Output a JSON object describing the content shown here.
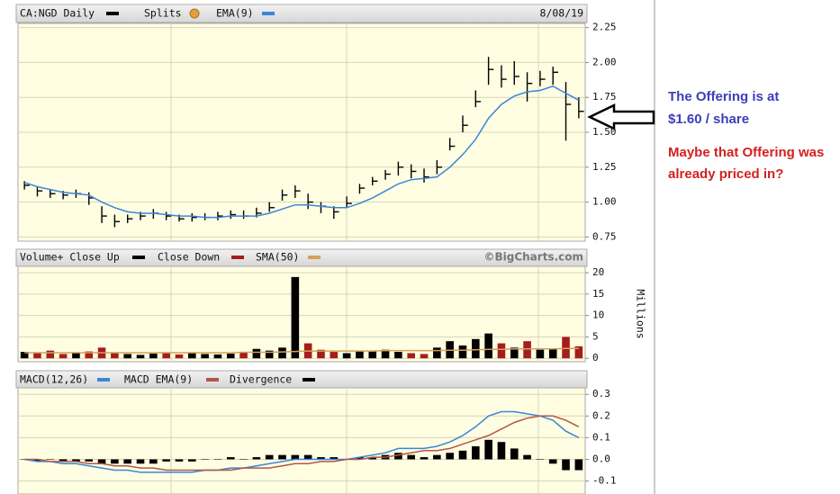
{
  "chart_data": [
    {
      "type": "ohlc",
      "title": "CA:NGD Daily",
      "splits_label": "Splits",
      "date": "8/08/19",
      "ylim": [
        0.72,
        2.28
      ],
      "yticks": [
        {
          "value": 0.75,
          "label": "0.75"
        },
        {
          "value": 1,
          "label": "1.00"
        },
        {
          "value": 1.25,
          "label": "1.25"
        },
        {
          "value": 1.5,
          "label": "1.50"
        },
        {
          "value": 1.75,
          "label": "1.75"
        },
        {
          "value": 2,
          "label": "2.00"
        },
        {
          "value": 2.25,
          "label": "2.25"
        }
      ],
      "grid": true,
      "series": [
        {
          "name": "CA:NGD Daily",
          "color": "#000000",
          "high": [
            1.15,
            1.11,
            1.09,
            1.08,
            1.09,
            1.07,
            0.97,
            0.91,
            0.91,
            0.93,
            0.95,
            0.93,
            0.91,
            0.92,
            0.92,
            0.93,
            0.94,
            0.94,
            0.96,
            1.0,
            1.09,
            1.12,
            1.06,
            1.0,
            0.97,
            1.04,
            1.13,
            1.18,
            1.23,
            1.29,
            1.27,
            1.24,
            1.3,
            1.46,
            1.62,
            1.8,
            2.04,
            1.98,
            2.01,
            1.93,
            1.94,
            1.97,
            1.86,
            1.75
          ],
          "low": [
            1.09,
            1.04,
            1.03,
            1.02,
            1.03,
            0.98,
            0.85,
            0.82,
            0.85,
            0.87,
            0.88,
            0.87,
            0.86,
            0.86,
            0.87,
            0.87,
            0.88,
            0.88,
            0.89,
            0.93,
            1.01,
            1.03,
            0.95,
            0.92,
            0.88,
            0.96,
            1.06,
            1.12,
            1.16,
            1.19,
            1.17,
            1.14,
            1.2,
            1.37,
            1.5,
            1.68,
            1.84,
            1.82,
            1.84,
            1.72,
            1.83,
            1.84,
            1.44,
            1.6
          ],
          "close": [
            1.12,
            1.08,
            1.06,
            1.05,
            1.06,
            1.03,
            0.9,
            0.86,
            0.88,
            0.9,
            0.92,
            0.9,
            0.88,
            0.89,
            0.89,
            0.9,
            0.91,
            0.9,
            0.92,
            0.96,
            1.05,
            1.08,
            1.0,
            0.97,
            0.93,
            0.99,
            1.1,
            1.15,
            1.2,
            1.25,
            1.22,
            1.18,
            1.25,
            1.4,
            1.55,
            1.72,
            1.95,
            1.88,
            1.9,
            1.85,
            1.88,
            1.93,
            1.7,
            1.65
          ]
        },
        {
          "name": "EMA(9)",
          "color": "#3a86d8",
          "style": "line",
          "values": [
            1.14,
            1.11,
            1.09,
            1.07,
            1.06,
            1.05,
            1.0,
            0.96,
            0.93,
            0.92,
            0.92,
            0.91,
            0.9,
            0.9,
            0.89,
            0.89,
            0.9,
            0.9,
            0.9,
            0.92,
            0.95,
            0.98,
            0.98,
            0.97,
            0.96,
            0.96,
            0.99,
            1.03,
            1.08,
            1.13,
            1.16,
            1.17,
            1.18,
            1.25,
            1.34,
            1.45,
            1.6,
            1.7,
            1.76,
            1.79,
            1.8,
            1.83,
            1.78,
            1.73
          ]
        }
      ]
    },
    {
      "type": "bar",
      "watermark": "©BigCharts.com",
      "y_label": "Millions",
      "ylim": [
        -0.8,
        21.5
      ],
      "yticks": [
        0,
        5,
        10,
        15,
        20
      ],
      "grid": true,
      "series": [
        {
          "name": "Volume+ Close Up",
          "color": "#000000",
          "style": "bar",
          "values": [
            1.5,
            null,
            null,
            null,
            1.3,
            null,
            null,
            null,
            1.0,
            0.8,
            1.1,
            null,
            null,
            1.2,
            1.0,
            0.9,
            1.1,
            null,
            2.2,
            1.8,
            2.5,
            19,
            null,
            null,
            null,
            1.2,
            1.8,
            1.6,
            2.0,
            1.5,
            null,
            null,
            2.5,
            4.0,
            3.0,
            4.5,
            5.8,
            null,
            2.5,
            null,
            2.0,
            2.2,
            null,
            null
          ]
        },
        {
          "name": "Close Down",
          "color": "#a51d1d",
          "style": "bar",
          "values": [
            null,
            1.2,
            1.8,
            1.0,
            null,
            1.6,
            2.5,
            1.2,
            null,
            null,
            null,
            1.4,
            0.9,
            null,
            null,
            null,
            null,
            1.5,
            null,
            null,
            null,
            null,
            3.5,
            2.0,
            1.5,
            null,
            null,
            null,
            null,
            null,
            1.2,
            1.0,
            null,
            null,
            null,
            null,
            null,
            3.5,
            null,
            4.0,
            null,
            null,
            5.0,
            2.8
          ]
        },
        {
          "name": "SMA(50)",
          "color": "#d4a25a",
          "style": "line",
          "values": [
            1.3,
            1.3,
            1.3,
            1.3,
            1.3,
            1.3,
            1.3,
            1.3,
            1.3,
            1.3,
            1.3,
            1.3,
            1.3,
            1.3,
            1.3,
            1.3,
            1.3,
            1.4,
            1.4,
            1.4,
            1.5,
            1.6,
            1.7,
            1.7,
            1.7,
            1.7,
            1.7,
            1.7,
            1.8,
            1.8,
            1.8,
            1.8,
            1.8,
            1.9,
            1.9,
            2.0,
            2.1,
            2.1,
            2.2,
            2.2,
            2.2,
            2.2,
            2.3,
            2.3
          ]
        }
      ]
    },
    {
      "type": "line",
      "ylim": [
        -0.16,
        0.33
      ],
      "yticks": [
        -0.1,
        {
          "value": 0,
          "label": "0.0"
        },
        0.1,
        0.2,
        0.3
      ],
      "grid": true,
      "series": [
        {
          "name": "MACD(12,26)",
          "color": "#3a86d8",
          "style": "line",
          "values": [
            0.0,
            -0.01,
            -0.01,
            -0.02,
            -0.02,
            -0.03,
            -0.04,
            -0.05,
            -0.05,
            -0.06,
            -0.06,
            -0.06,
            -0.06,
            -0.06,
            -0.05,
            -0.05,
            -0.04,
            -0.04,
            -0.03,
            -0.02,
            -0.01,
            0.0,
            0.0,
            0.0,
            0.0,
            0.0,
            0.01,
            0.02,
            0.03,
            0.05,
            0.05,
            0.05,
            0.06,
            0.08,
            0.11,
            0.15,
            0.2,
            0.22,
            0.22,
            0.21,
            0.2,
            0.18,
            0.13,
            0.1
          ]
        },
        {
          "name": "MACD EMA(9)",
          "color": "#b0584a",
          "style": "line",
          "values": [
            0.0,
            0.0,
            -0.01,
            -0.01,
            -0.01,
            -0.02,
            -0.02,
            -0.03,
            -0.03,
            -0.04,
            -0.04,
            -0.05,
            -0.05,
            -0.05,
            -0.05,
            -0.05,
            -0.05,
            -0.04,
            -0.04,
            -0.04,
            -0.03,
            -0.02,
            -0.02,
            -0.01,
            -0.01,
            0.0,
            0.0,
            0.01,
            0.01,
            0.02,
            0.03,
            0.04,
            0.04,
            0.05,
            0.07,
            0.09,
            0.11,
            0.14,
            0.17,
            0.19,
            0.2,
            0.2,
            0.18,
            0.15
          ]
        },
        {
          "name": "Divergence",
          "color": "#000000",
          "style": "bar",
          "values": [
            0,
            -0.01,
            0,
            -0.01,
            -0.01,
            -0.01,
            -0.02,
            -0.02,
            -0.02,
            -0.02,
            -0.02,
            -0.01,
            -0.01,
            -0.01,
            0,
            0,
            0.01,
            0,
            0.01,
            0.02,
            0.02,
            0.02,
            0.02,
            0.01,
            0.01,
            0,
            0.01,
            0.01,
            0.02,
            0.03,
            0.02,
            0.01,
            0.02,
            0.03,
            0.04,
            0.06,
            0.09,
            0.08,
            0.05,
            0.02,
            0,
            -0.02,
            -0.05,
            -0.05
          ]
        }
      ]
    }
  ],
  "annotation": {
    "offering": [
      "The Offering is at",
      "$1.60 / share"
    ],
    "question": [
      "Maybe that Offering was",
      "already priced in?"
    ]
  }
}
